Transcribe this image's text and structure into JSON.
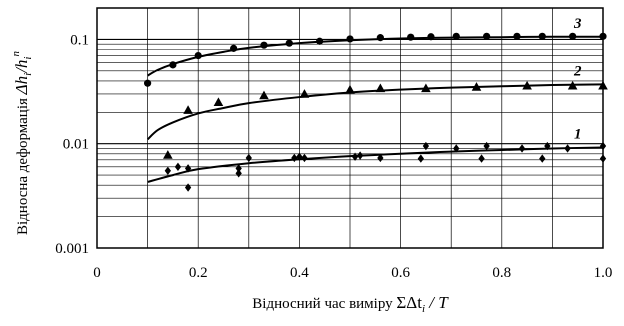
{
  "chart_data": {
    "type": "scatter",
    "xlabel_text": "Відносний час виміру ",
    "xlabel_math": "ΣΔt",
    "xlabel_sub": "i",
    "xlabel_tail": " / T",
    "ylabel_text": "Відносна деформація ",
    "ylabel_math": "Δh",
    "ylabel_sub1": "i",
    "ylabel_sep": "/h",
    "ylabel_sub2": "i",
    "ylabel_sup": "n",
    "xlim": [
      0,
      1.0
    ],
    "ylim": [
      0.001,
      0.2
    ],
    "yscale": "log",
    "grid": true,
    "x_ticks": [
      0,
      0.2,
      0.4,
      0.6,
      0.8,
      1.0
    ],
    "x_tick_labels": [
      "0",
      "0.2",
      "0.4",
      "0.6",
      "0.8",
      "1.0"
    ],
    "y_ticks": [
      0.001,
      0.01,
      0.1
    ],
    "y_tick_labels": [
      "0.001",
      "0.01",
      "0.1"
    ],
    "series": [
      {
        "name": "3",
        "marker": "circle",
        "points": [
          [
            0.1,
            0.038
          ],
          [
            0.15,
            0.057
          ],
          [
            0.2,
            0.07
          ],
          [
            0.27,
            0.082
          ],
          [
            0.33,
            0.088
          ],
          [
            0.38,
            0.092
          ],
          [
            0.44,
            0.096
          ],
          [
            0.5,
            0.101
          ],
          [
            0.56,
            0.104
          ],
          [
            0.62,
            0.105
          ],
          [
            0.66,
            0.106
          ],
          [
            0.71,
            0.107
          ],
          [
            0.77,
            0.107
          ],
          [
            0.83,
            0.107
          ],
          [
            0.88,
            0.107
          ],
          [
            0.94,
            0.107
          ],
          [
            1.0,
            0.107
          ]
        ],
        "curve": [
          [
            0.1,
            0.045
          ],
          [
            0.12,
            0.051
          ],
          [
            0.15,
            0.058
          ],
          [
            0.2,
            0.068
          ],
          [
            0.25,
            0.076
          ],
          [
            0.3,
            0.083
          ],
          [
            0.4,
            0.092
          ],
          [
            0.5,
            0.098
          ],
          [
            0.6,
            0.102
          ],
          [
            0.7,
            0.104
          ],
          [
            0.8,
            0.105
          ],
          [
            0.9,
            0.106
          ],
          [
            1.0,
            0.106
          ]
        ]
      },
      {
        "name": "2",
        "marker": "triangle",
        "points": [
          [
            0.18,
            0.021
          ],
          [
            0.24,
            0.025
          ],
          [
            0.33,
            0.029
          ],
          [
            0.41,
            0.03
          ],
          [
            0.5,
            0.033
          ],
          [
            0.56,
            0.034
          ],
          [
            0.65,
            0.034
          ],
          [
            0.75,
            0.035
          ],
          [
            0.85,
            0.036
          ],
          [
            0.94,
            0.036
          ],
          [
            1.0,
            0.036
          ]
        ],
        "curve": [
          [
            0.1,
            0.011
          ],
          [
            0.12,
            0.0135
          ],
          [
            0.15,
            0.016
          ],
          [
            0.2,
            0.0195
          ],
          [
            0.25,
            0.022
          ],
          [
            0.3,
            0.0245
          ],
          [
            0.4,
            0.028
          ],
          [
            0.5,
            0.031
          ],
          [
            0.6,
            0.033
          ],
          [
            0.7,
            0.0345
          ],
          [
            0.8,
            0.0355
          ],
          [
            0.9,
            0.0365
          ],
          [
            1.0,
            0.037
          ]
        ]
      },
      {
        "name": "1",
        "marker": "diamond",
        "points": [
          [
            0.14,
            0.0055
          ],
          [
            0.16,
            0.006
          ],
          [
            0.18,
            0.0038
          ],
          [
            0.18,
            0.0058
          ],
          [
            0.28,
            0.0052
          ],
          [
            0.28,
            0.0058
          ],
          [
            0.3,
            0.0073
          ],
          [
            0.39,
            0.0073
          ],
          [
            0.4,
            0.0075
          ],
          [
            0.41,
            0.0073
          ],
          [
            0.51,
            0.0075
          ],
          [
            0.52,
            0.0077
          ],
          [
            0.56,
            0.0073
          ],
          [
            0.64,
            0.0072
          ],
          [
            0.65,
            0.0095
          ],
          [
            0.71,
            0.009
          ],
          [
            0.76,
            0.0072
          ],
          [
            0.77,
            0.0095
          ],
          [
            0.84,
            0.009
          ],
          [
            0.88,
            0.0072
          ],
          [
            0.89,
            0.0095
          ],
          [
            0.93,
            0.009
          ],
          [
            1.0,
            0.0072
          ],
          [
            1.0,
            0.0095
          ]
        ],
        "curve": [
          [
            0.1,
            0.0043
          ],
          [
            0.15,
            0.005
          ],
          [
            0.2,
            0.0057
          ],
          [
            0.3,
            0.0065
          ],
          [
            0.4,
            0.0071
          ],
          [
            0.5,
            0.0076
          ],
          [
            0.6,
            0.008
          ],
          [
            0.7,
            0.0084
          ],
          [
            0.8,
            0.0087
          ],
          [
            0.9,
            0.009
          ],
          [
            1.0,
            0.0092
          ]
        ]
      },
      {
        "name": "",
        "marker": "triangle",
        "points": [
          [
            0.14,
            0.0078
          ]
        ]
      }
    ]
  }
}
